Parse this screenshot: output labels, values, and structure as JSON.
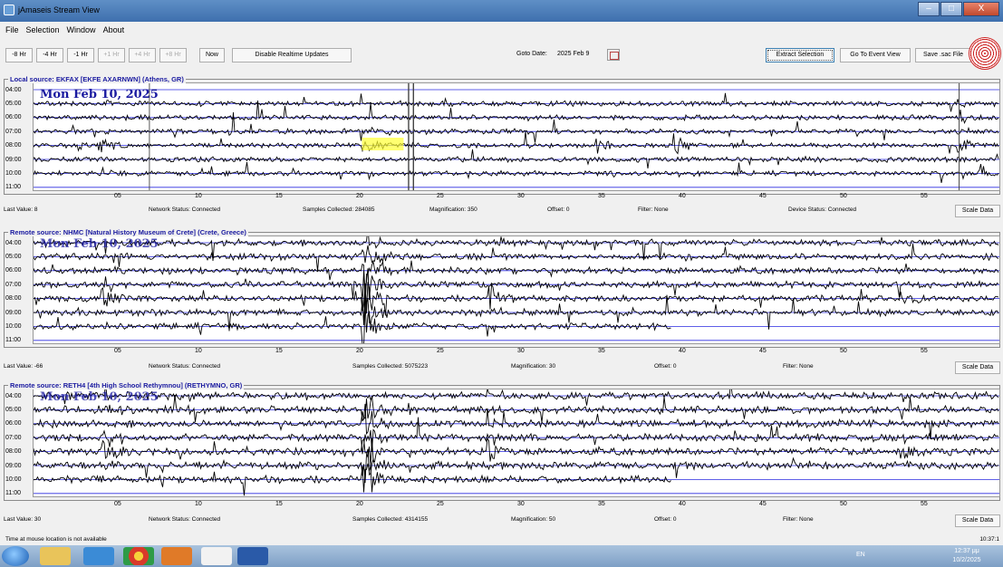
{
  "window": {
    "title": "jAmaseis Stream View",
    "controls": [
      "–",
      "□",
      "X"
    ]
  },
  "menu": [
    "File",
    "Selection",
    "Window",
    "About"
  ],
  "toolbar": {
    "left_buttons": [
      "-8 Hr",
      "-4 Hr",
      "-1 Hr",
      "+1 Hr",
      "+4 Hr",
      "+8 Hr",
      "Now",
      "Disable Realtime Updates"
    ],
    "disabled_buttons": [
      "+1 Hr",
      "+4 Hr",
      "+8 Hr"
    ],
    "goto_label": "Goto Date:",
    "goto_value": "2025 Feb 9",
    "right_buttons": [
      "Extract Selection",
      "Go To Event View",
      "Save .sac File"
    ]
  },
  "hours": [
    "04:00",
    "05:00",
    "06:00",
    "07:00",
    "08:00",
    "09:00",
    "10:00",
    "11:00"
  ],
  "minute_ticks": [
    "05",
    "10",
    "15",
    "20",
    "25",
    "30",
    "35",
    "40",
    "45",
    "50",
    "55"
  ],
  "panels": [
    {
      "source": "Local source: EKFAX [EKFE AXARNWN] (Athens, GR)",
      "date": "Mon Feb 10, 2025",
      "last_value": "Last Value:  8",
      "network": "Network Status:  Connected",
      "samples": "Samples Collected:  284085",
      "magnification": "Magnification:  350",
      "offset": "Offset:  0",
      "filter": "Filter:  None",
      "device": "Device Status:  Connected",
      "scale": "Scale Data"
    },
    {
      "source": "Remote source: NHMC [Natural History Museum of Crete] (Crete, Greece)",
      "date": "Mon Feb 10, 2025",
      "last_value": "Last Value:  -66",
      "network": "Network Status:  Connected",
      "samples": "Samples Collected:  5075223",
      "magnification": "Magnification:  30",
      "offset": "Offset:  0",
      "filter": "Filter:  None",
      "device": "",
      "scale": "Scale Data"
    },
    {
      "source": "Remote source: RETH4 [4th High School Rethymnou] (RETHYMNO, GR)",
      "date": "Mon Feb 10, 2025",
      "last_value": "Last Value:  30",
      "network": "Network Status:  Connected",
      "samples": "Samples Collected:  4314155",
      "magnification": "Magnification:  50",
      "offset": "Offset:  0",
      "filter": "Filter:  None",
      "device": "",
      "scale": "Scale Data"
    }
  ],
  "statusbar": {
    "left": "Time at mouse location is not available",
    "right": "10:37:1"
  },
  "taskbar": {
    "lang": "EN",
    "time": "12:37 μμ",
    "date": "10/2/2025"
  },
  "colors": {
    "trace": "#000000",
    "baseline": "#1a1ae0",
    "accent": "#1a1aa0",
    "selection": "#ffff33"
  }
}
